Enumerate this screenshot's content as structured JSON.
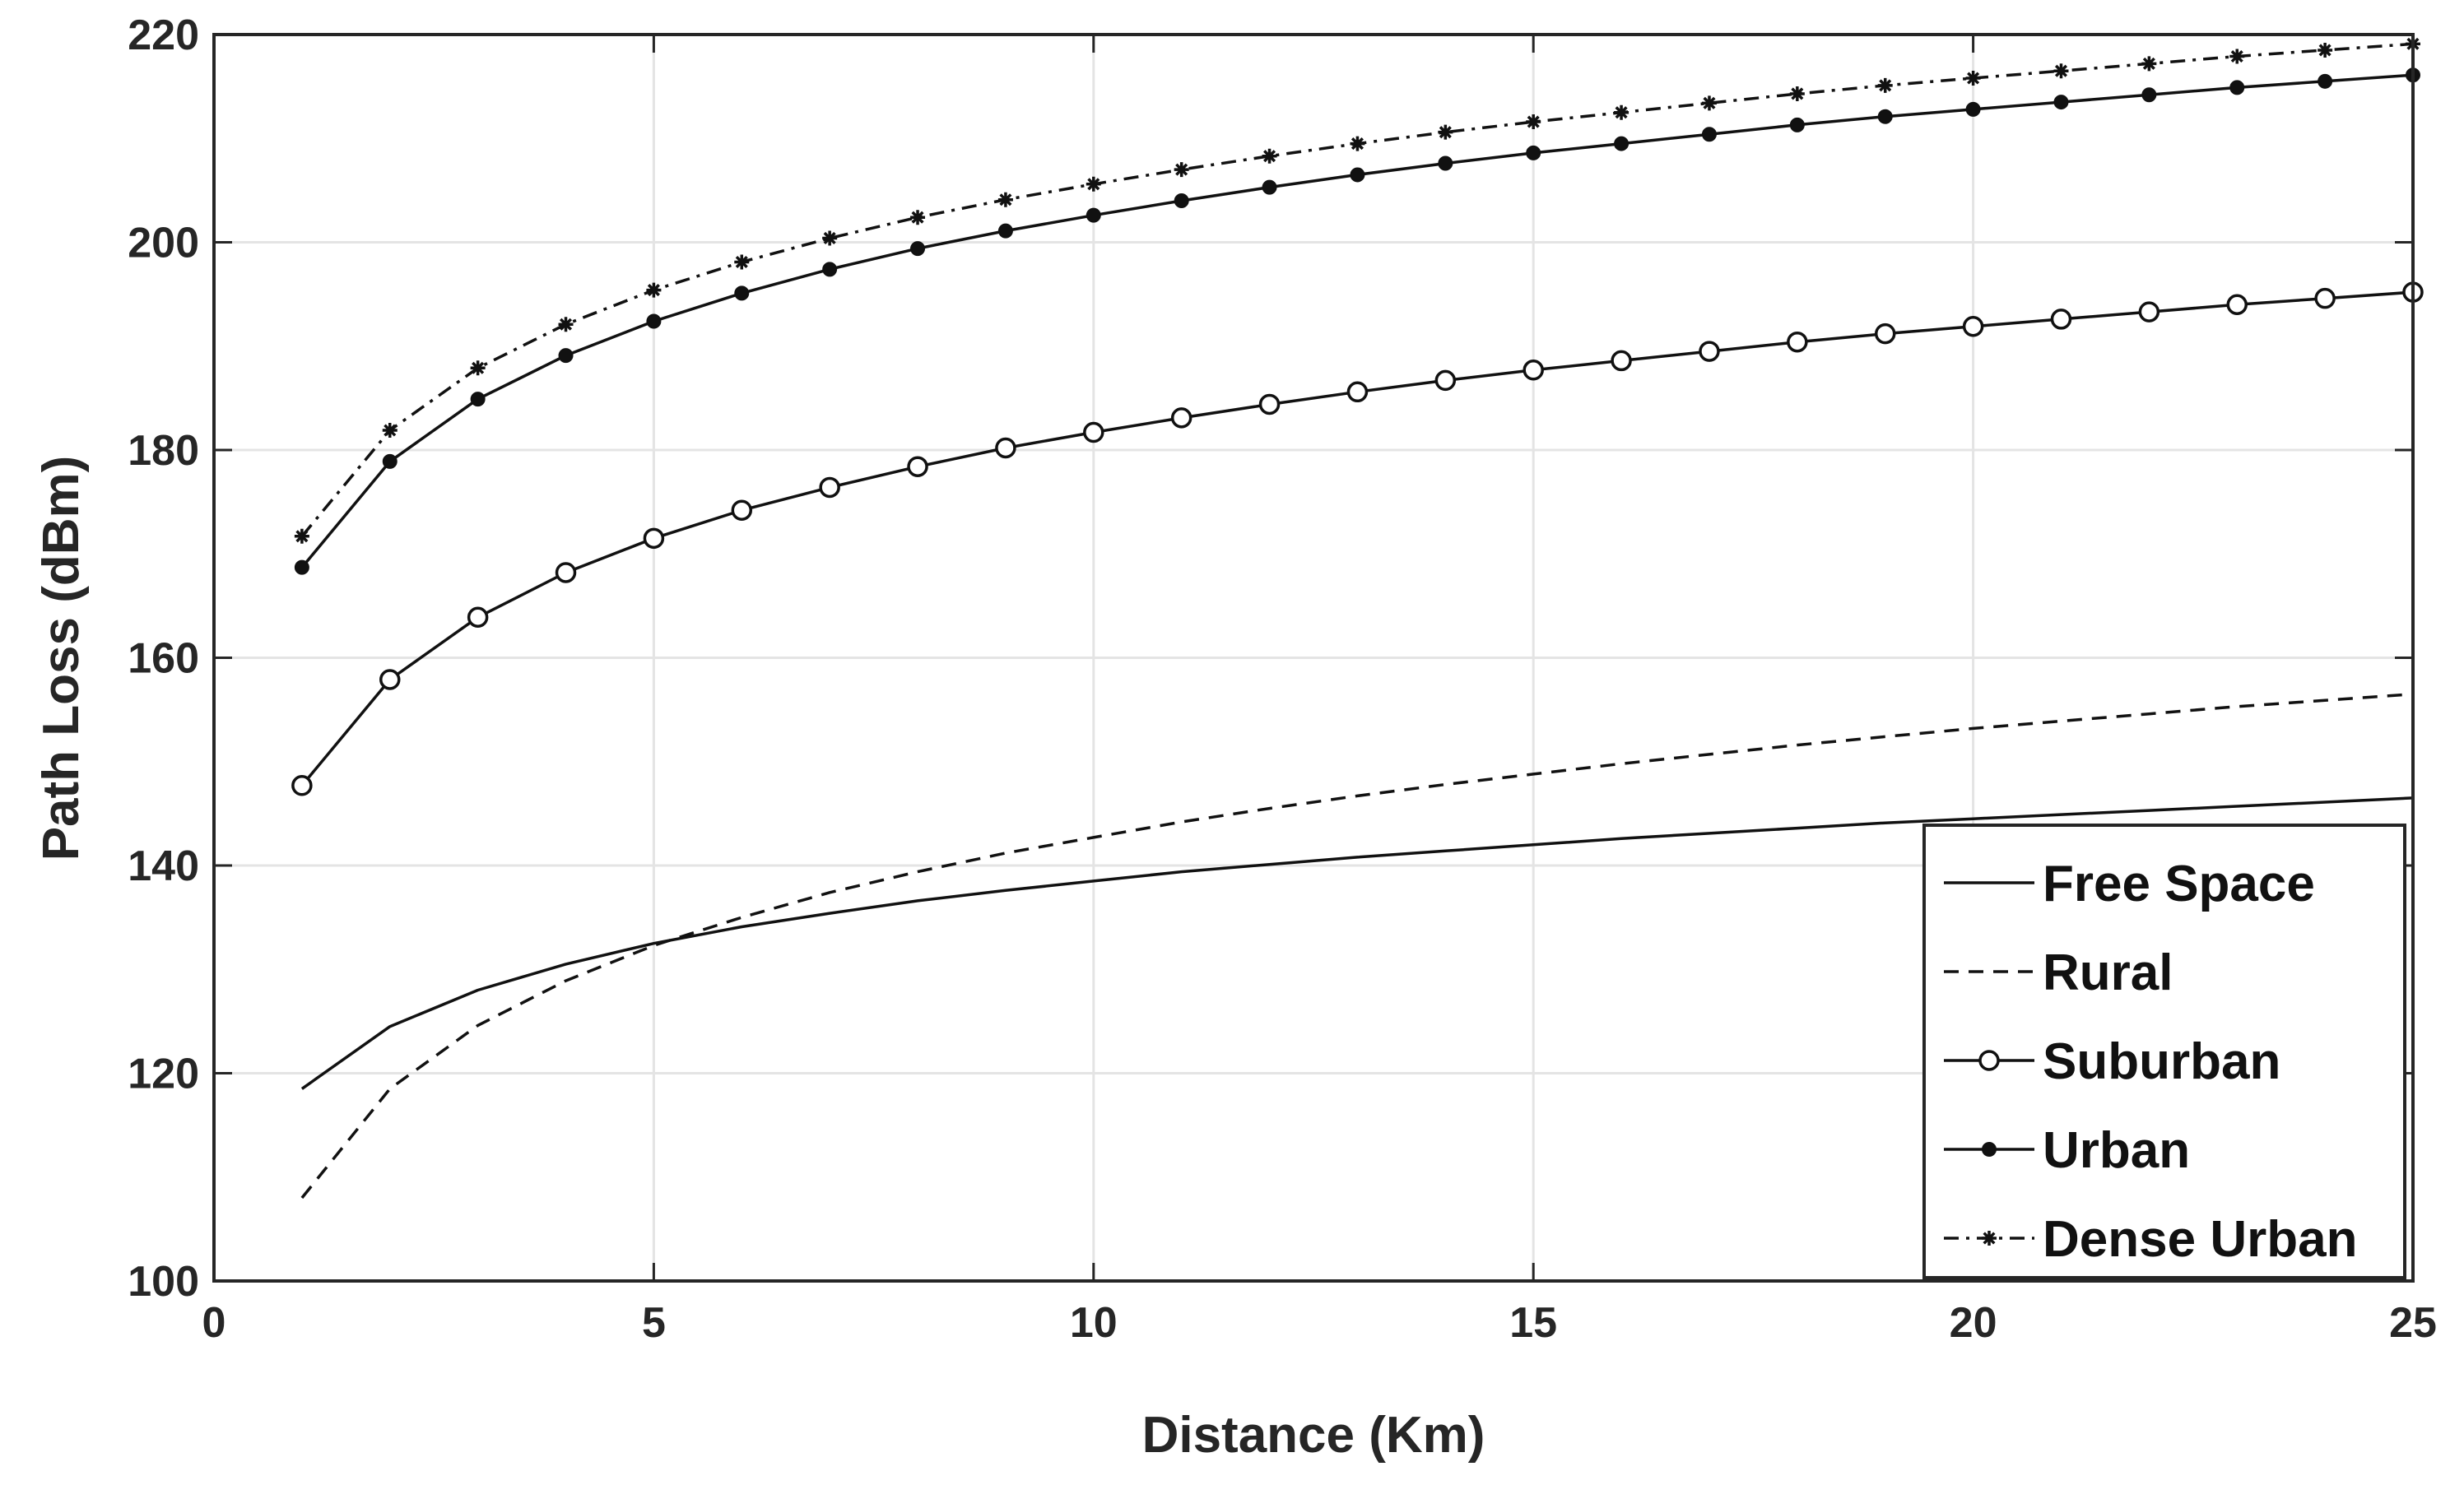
{
  "chart_data": {
    "type": "line",
    "title": "",
    "xlabel": "Distance (Km)",
    "ylabel": "Path Loss (dBm)",
    "xlim": [
      0,
      25
    ],
    "ylim": [
      100,
      220
    ],
    "xticks": [
      0,
      5,
      10,
      15,
      20,
      25
    ],
    "yticks": [
      100,
      120,
      140,
      160,
      180,
      200,
      220
    ],
    "grid": true,
    "legend_position": "bottom-right",
    "x": [
      1,
      2,
      3,
      4,
      5,
      6,
      7,
      8,
      9,
      10,
      11,
      12,
      13,
      14,
      15,
      16,
      17,
      18,
      19,
      20,
      21,
      22,
      23,
      24,
      25
    ],
    "series": [
      {
        "name": "Free Space",
        "line_style": "solid",
        "marker": "none",
        "values": [
          118.5,
          124.5,
          128.0,
          130.5,
          132.5,
          134.1,
          135.4,
          136.6,
          137.6,
          138.5,
          139.4,
          140.1,
          140.8,
          141.4,
          142.0,
          142.6,
          143.1,
          143.6,
          144.1,
          144.5,
          144.9,
          145.3,
          145.7,
          146.1,
          146.5
        ]
      },
      {
        "name": "Rural",
        "line_style": "dashed",
        "marker": "none",
        "values": [
          108.0,
          118.5,
          124.6,
          128.9,
          132.3,
          135.0,
          137.4,
          139.4,
          141.2,
          142.7,
          144.2,
          145.5,
          146.7,
          147.8,
          148.8,
          149.8,
          150.7,
          151.6,
          152.4,
          153.2,
          153.9,
          154.6,
          155.3,
          155.9,
          156.5
        ]
      },
      {
        "name": "Suburban",
        "line_style": "solid",
        "marker": "circle",
        "values": [
          147.7,
          157.9,
          163.9,
          168.2,
          171.5,
          174.2,
          176.4,
          178.4,
          180.2,
          181.7,
          183.1,
          184.4,
          185.6,
          186.7,
          187.7,
          188.6,
          189.5,
          190.4,
          191.2,
          191.9,
          192.6,
          193.3,
          194.0,
          194.6,
          195.2
        ]
      },
      {
        "name": "Urban",
        "line_style": "solid",
        "marker": "dot",
        "values": [
          168.7,
          178.9,
          184.9,
          189.1,
          192.4,
          195.1,
          197.4,
          199.4,
          201.1,
          202.6,
          204.0,
          205.3,
          206.5,
          207.6,
          208.6,
          209.5,
          210.4,
          211.3,
          212.1,
          212.8,
          213.5,
          214.2,
          214.9,
          215.5,
          216.1
        ]
      },
      {
        "name": "Dense Urban",
        "line_style": "dashdot",
        "marker": "star",
        "values": [
          171.7,
          181.9,
          187.9,
          192.1,
          195.4,
          198.1,
          200.4,
          202.4,
          204.1,
          205.6,
          207.0,
          208.3,
          209.5,
          210.6,
          211.6,
          212.5,
          213.4,
          214.3,
          215.1,
          215.8,
          216.5,
          217.2,
          217.9,
          218.5,
          219.1
        ]
      }
    ]
  },
  "colors": {
    "axes": "#262626",
    "grid": "#e4e4e4",
    "line": "#111111"
  }
}
